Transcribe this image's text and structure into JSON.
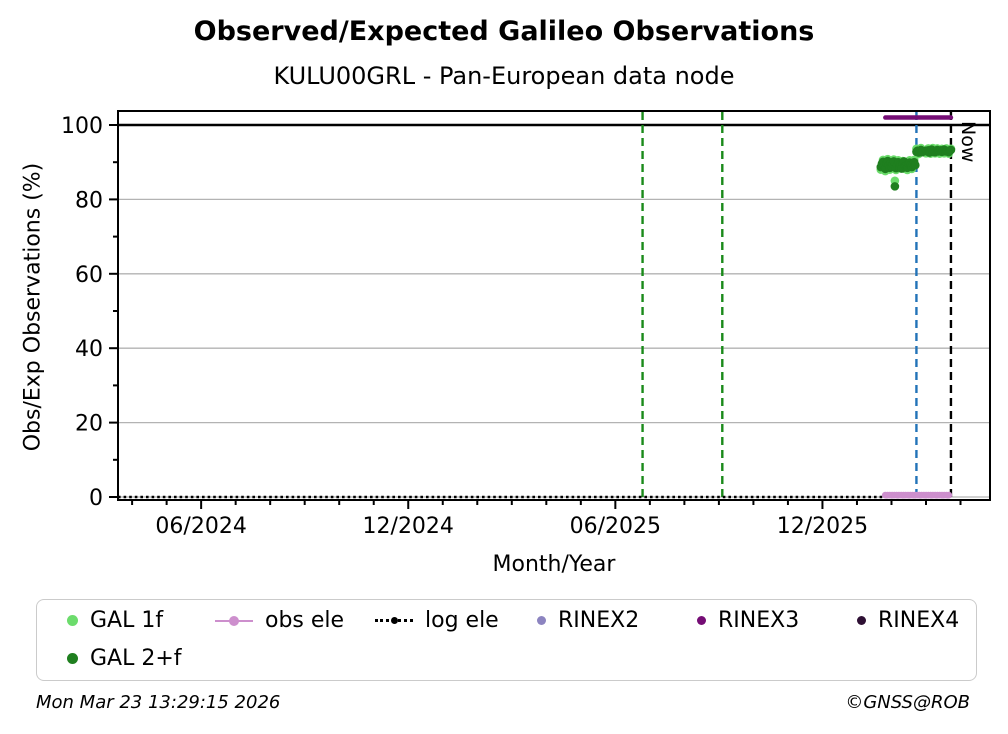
{
  "title": "Observed/Expected Galileo Observations",
  "subtitle": "KULU00GRL - Pan-European data node",
  "footer": {
    "timestamp": "Mon Mar 23 13:29:15 2026",
    "copyright": "©GNSS@ROB"
  },
  "legend": {
    "items": [
      {
        "label": "GAL 1f",
        "marker": "dot",
        "color": "#6CDC6C",
        "row": 1,
        "col": 0
      },
      {
        "label": "obs ele",
        "marker": "line-dot",
        "color": "#CD8FCD",
        "row": 1,
        "col": 1
      },
      {
        "label": "log ele",
        "marker": "dotted-line-dot",
        "color": "#000000",
        "row": 1,
        "col": 2
      },
      {
        "label": "RINEX2",
        "marker": "dot-small",
        "color": "#8C84C0",
        "row": 1,
        "col": 3
      },
      {
        "label": "RINEX3",
        "marker": "dot-small",
        "color": "#750D75",
        "row": 1,
        "col": 4
      },
      {
        "label": "RINEX4",
        "marker": "dot-small",
        "color": "#2E1034",
        "row": 1,
        "col": 5
      },
      {
        "label": "GAL 2+f",
        "marker": "dot",
        "color": "#1F7F1F",
        "row": 2,
        "col": 0
      }
    ]
  },
  "chart_data": {
    "type": "scatter",
    "title": "Observed/Expected Galileo Observations",
    "subtitle": "KULU00GRL - Pan-European data node",
    "xlabel": "Month/Year",
    "ylabel": "Obs/Exp Observations (%)",
    "xlim": [
      "2024-03-19",
      "2026-04-27"
    ],
    "ylim": [
      0,
      104
    ],
    "x_ticks": [
      {
        "date": "2024-06-01",
        "label": "06/2024"
      },
      {
        "date": "2024-12-01",
        "label": "12/2024"
      },
      {
        "date": "2025-06-01",
        "label": "06/2025"
      },
      {
        "date": "2025-12-01",
        "label": "12/2025"
      }
    ],
    "x_minor_tick_interval_months": 1,
    "y_major_ticks": [
      0,
      20,
      40,
      60,
      80,
      100
    ],
    "y_minor_ticks": [
      10,
      30,
      50,
      70,
      90
    ],
    "gridlines": {
      "y": [
        0,
        20,
        40,
        60,
        80
      ],
      "color": "#b3b3b3",
      "grid_on": true
    },
    "reference_line": {
      "y": 100,
      "color": "#000000"
    },
    "vlines": [
      {
        "date": "2025-06-25",
        "color": "#1a8a1a",
        "style": "dashed",
        "label": ""
      },
      {
        "date": "2025-09-04",
        "color": "#1a8a1a",
        "style": "dashed",
        "label": ""
      },
      {
        "date": "2026-02-23",
        "color": "#2273b8",
        "style": "dashed",
        "label": ""
      },
      {
        "date": "2026-03-23",
        "color": "#000000",
        "style": "dashed",
        "label": "Now"
      }
    ],
    "series": [
      {
        "name": "log ele",
        "type": "dotted_line",
        "color": "#000000",
        "y": 0,
        "x_start": "2024-03-19",
        "x_end": "2026-03-23"
      },
      {
        "name": "RINEX3",
        "type": "line",
        "color": "#750D75",
        "linewidth": 4.5,
        "y": 102,
        "x_start": "2026-01-26",
        "x_end": "2026-03-23"
      },
      {
        "name": "RINEX2",
        "type": "scatter",
        "color": "#8C84C0",
        "marker_radius": 3.4,
        "points": []
      },
      {
        "name": "RINEX4",
        "type": "scatter",
        "color": "#2E1034",
        "marker_radius": 3.4,
        "points": []
      },
      {
        "name": "obs ele",
        "type": "marker_run",
        "color": "#CD8FCD",
        "y": 0.5,
        "x_start": "2026-01-26",
        "x_end": "2026-03-23",
        "step_days": 2,
        "marker_radius": 3.4
      },
      {
        "name": "GAL 1f",
        "type": "scatter",
        "color": "#6CDC6C",
        "marker_radius": 4.3,
        "points": [
          [
            "2026-01-22",
            88.0
          ],
          [
            "2026-01-24",
            90.6
          ],
          [
            "2026-01-26",
            87.6
          ],
          [
            "2026-01-28",
            90.8
          ],
          [
            "2026-01-30",
            88.0
          ],
          [
            "2026-02-01",
            89.3
          ],
          [
            "2026-02-03",
            90.7
          ],
          [
            "2026-02-04",
            85.0
          ],
          [
            "2026-02-05",
            87.9
          ],
          [
            "2026-02-07",
            90.5
          ],
          [
            "2026-02-09",
            88.9
          ],
          [
            "2026-02-11",
            90.3
          ],
          [
            "2026-02-13",
            88.2
          ],
          [
            "2026-02-15",
            87.9
          ],
          [
            "2026-02-17",
            90.5
          ],
          [
            "2026-02-19",
            88.2
          ],
          [
            "2026-02-21",
            90.6
          ],
          [
            "2026-02-23",
            93.6
          ],
          [
            "2026-02-25",
            92.2
          ],
          [
            "2026-02-27",
            93.8
          ],
          [
            "2026-03-01",
            92.4
          ],
          [
            "2026-03-03",
            93.7
          ],
          [
            "2026-03-05",
            92.3
          ],
          [
            "2026-03-07",
            93.8
          ],
          [
            "2026-03-09",
            92.4
          ],
          [
            "2026-03-11",
            93.7
          ],
          [
            "2026-03-13",
            92.3
          ],
          [
            "2026-03-15",
            93.6
          ],
          [
            "2026-03-17",
            92.4
          ],
          [
            "2026-03-19",
            93.7
          ],
          [
            "2026-03-21",
            92.3
          ],
          [
            "2026-03-23",
            93.6
          ]
        ]
      },
      {
        "name": "GAL 2+f",
        "type": "scatter",
        "color": "#1F7F1F",
        "marker_radius": 4.3,
        "points": [
          [
            "2026-01-22",
            88.7
          ],
          [
            "2026-01-23",
            89.6
          ],
          [
            "2026-01-24",
            90.1
          ],
          [
            "2026-01-25",
            88.9
          ],
          [
            "2026-01-26",
            88.2
          ],
          [
            "2026-01-27",
            89.8
          ],
          [
            "2026-01-28",
            90.3
          ],
          [
            "2026-01-29",
            89.2
          ],
          [
            "2026-01-30",
            88.5
          ],
          [
            "2026-01-31",
            89.9
          ],
          [
            "2026-02-01",
            88.8
          ],
          [
            "2026-02-02",
            89.5
          ],
          [
            "2026-02-03",
            90.2
          ],
          [
            "2026-02-04",
            83.5
          ],
          [
            "2026-02-05",
            88.4
          ],
          [
            "2026-02-06",
            89.1
          ],
          [
            "2026-02-07",
            90.0
          ],
          [
            "2026-02-08",
            88.6
          ],
          [
            "2026-02-09",
            89.4
          ],
          [
            "2026-02-10",
            88.3
          ],
          [
            "2026-02-11",
            89.7
          ],
          [
            "2026-02-12",
            90.2
          ],
          [
            "2026-02-13",
            88.9
          ],
          [
            "2026-02-14",
            89.0
          ],
          [
            "2026-02-15",
            88.5
          ],
          [
            "2026-02-16",
            89.6
          ],
          [
            "2026-02-17",
            89.9
          ],
          [
            "2026-02-18",
            89.3
          ],
          [
            "2026-02-19",
            88.7
          ],
          [
            "2026-02-20",
            89.5
          ],
          [
            "2026-02-21",
            90.0
          ],
          [
            "2026-02-22",
            89.2
          ],
          [
            "2026-02-23",
            92.8
          ],
          [
            "2026-02-24",
            93.1
          ],
          [
            "2026-02-25",
            92.6
          ],
          [
            "2026-02-26",
            93.0
          ],
          [
            "2026-02-27",
            93.3
          ],
          [
            "2026-02-28",
            92.7
          ],
          [
            "2026-03-01",
            93.1
          ],
          [
            "2026-03-02",
            92.9
          ],
          [
            "2026-03-03",
            93.2
          ],
          [
            "2026-03-04",
            92.6
          ],
          [
            "2026-03-05",
            93.0
          ],
          [
            "2026-03-06",
            93.4
          ],
          [
            "2026-03-07",
            92.8
          ],
          [
            "2026-03-08",
            93.1
          ],
          [
            "2026-03-09",
            92.7
          ],
          [
            "2026-03-10",
            93.0
          ],
          [
            "2026-03-11",
            93.3
          ],
          [
            "2026-03-12",
            92.9
          ],
          [
            "2026-03-13",
            93.0
          ],
          [
            "2026-03-14",
            93.2
          ],
          [
            "2026-03-15",
            92.8
          ],
          [
            "2026-03-16",
            93.1
          ],
          [
            "2026-03-17",
            93.4
          ],
          [
            "2026-03-18",
            92.9
          ],
          [
            "2026-03-19",
            93.1
          ],
          [
            "2026-03-20",
            93.0
          ],
          [
            "2026-03-21",
            92.7
          ],
          [
            "2026-03-22",
            93.2
          ],
          [
            "2026-03-23",
            93.3
          ]
        ]
      }
    ]
  }
}
